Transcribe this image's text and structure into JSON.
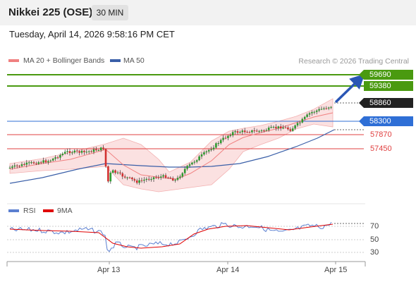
{
  "header": {
    "title": "Nikkei 225 (OSE)",
    "timeframe": "30 MIN"
  },
  "timestamp": "Tuesday, April 14, 2026 9:58:16 PM CET",
  "legend": {
    "ma20": "MA 20 + Bollinger Bands",
    "ma20_color": "#f08080",
    "ma50": "MA 50",
    "ma50_color": "#3a5fa8",
    "credit": "Research © 2026 Trading Central"
  },
  "levels": {
    "resistance2": "59690",
    "resistance1": "59380",
    "last": "58860",
    "pivot": "58300",
    "support1": "57870",
    "support2": "57450",
    "colors": {
      "resistance": "#4a9a10",
      "last": "#222222",
      "pivot": "#2f6fd6",
      "support": "#e04040"
    }
  },
  "rsi_panel": {
    "legend": {
      "rsi": "RSI",
      "rsi_color": "#5b7fd0",
      "ma": "9MA",
      "ma_color": "#e00000"
    },
    "levels": [
      "70",
      "50",
      "30"
    ]
  },
  "x_axis": {
    "labels": [
      "Apr 13",
      "Apr 14",
      "Apr 15"
    ]
  }
}
